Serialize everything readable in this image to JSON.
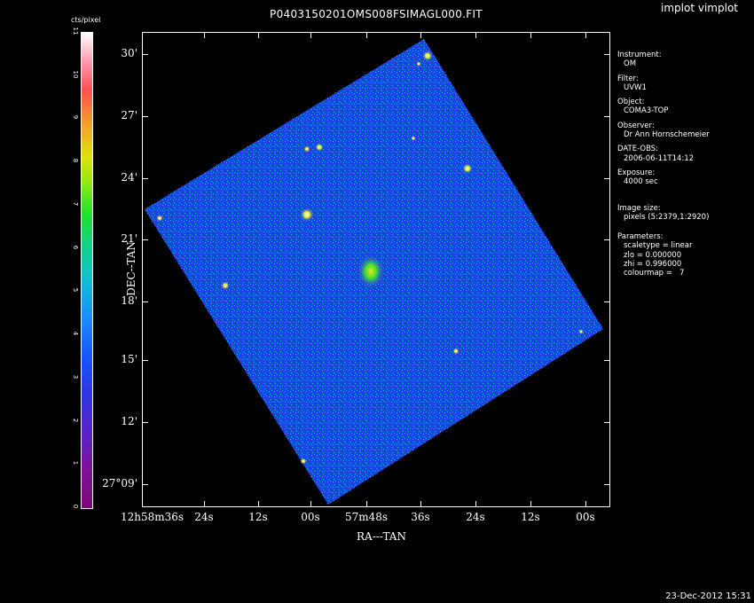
{
  "window": {
    "plot_title": "P0403150201OMS008FSIMAGL000.FIT",
    "app_title": "implot vimplot",
    "timestamp": "23-Dec-2012 15:31"
  },
  "colorbar": {
    "label": "cts/pixel",
    "ticks": [
      "0",
      "1",
      "2",
      "3",
      "4",
      "5",
      "6",
      "7",
      "8",
      "9",
      "10",
      "11"
    ],
    "colors": [
      "#7b0a74",
      "#5a22c8",
      "#1a55ff",
      "#10c0d0",
      "#22e22a",
      "#e2e010",
      "#ff5050",
      "#ffffff"
    ]
  },
  "axes": {
    "ylabel": "DEC--TAN",
    "xlabel": "RA---TAN",
    "yticks": [
      "30'",
      "27'",
      "24'",
      "21'",
      "18'",
      "15'",
      "12'",
      "27°09'"
    ],
    "xticks": [
      "12h58m36s",
      "24s",
      "12s",
      "00s",
      "57m48s",
      "36s",
      "24s",
      "12s",
      "00s"
    ]
  },
  "info": {
    "instrument_label": "Instrument:",
    "instrument": "OM",
    "filter_label": "Filter:",
    "filter": "UVW1",
    "object_label": "Object:",
    "object": "COMA3-TOP",
    "observer_label": "Observer:",
    "observer": "Dr Ann Hornschemeier",
    "date_label": "DATE-OBS:",
    "date": "2006-06-11T14:12",
    "exposure_label": "Exposure:",
    "exposure": "4000 sec",
    "size_label": "Image size:",
    "size": "pixels (5:2379,1:2920)",
    "params_label": "Parameters:",
    "p1": "scaletype = linear",
    "p2": "zlo = 0.000000",
    "p3": "zhi = 0.996000",
    "p4": "colourmap =   7"
  }
}
